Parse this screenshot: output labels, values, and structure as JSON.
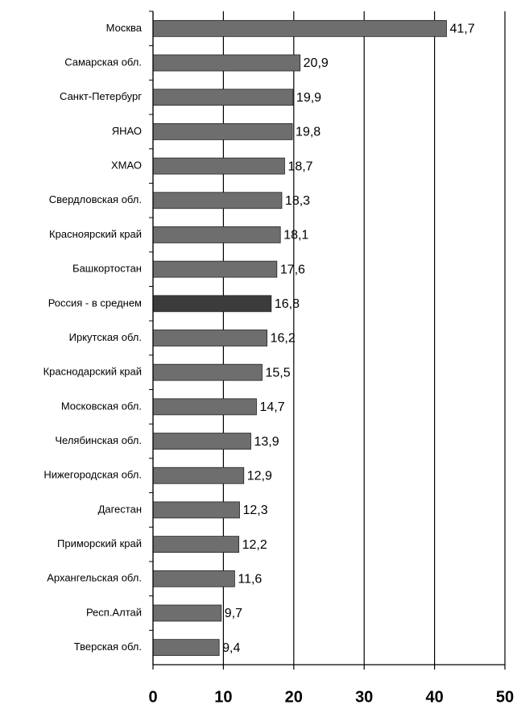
{
  "chart_data": {
    "type": "hbar",
    "categories": [
      "Москва",
      "Самарская обл.",
      "Санкт-Петербург",
      "ЯНАО",
      "ХМАО",
      "Свердловская обл.",
      "Красноярский край",
      "Башкортостан",
      "Россия - в среднем",
      "Иркутская обл.",
      "Краснодарский край",
      "Московская обл.",
      "Челябинская обл.",
      "Нижегородская обл.",
      "Дагестан",
      "Приморский край",
      "Архангельская обл.",
      "Респ.Алтай",
      "Тверская обл."
    ],
    "values": [
      41.7,
      20.9,
      19.9,
      19.8,
      18.7,
      18.3,
      18.1,
      17.6,
      16.8,
      16.2,
      15.5,
      14.7,
      13.9,
      12.9,
      12.3,
      12.2,
      11.6,
      9.7,
      9.4
    ],
    "value_labels": [
      "41,7",
      "20,9",
      "19,9",
      "19,8",
      "18,7",
      "18,3",
      "18,1",
      "17,6",
      "16,8",
      "16,2",
      "15,5",
      "14,7",
      "13,9",
      "12,9",
      "12,3",
      "12,2",
      "11,6",
      "9,7",
      "9,4"
    ],
    "colors": [
      "#6e6e6e",
      "#6e6e6e",
      "#6e6e6e",
      "#6e6e6e",
      "#6e6e6e",
      "#6e6e6e",
      "#6e6e6e",
      "#6e6e6e",
      "#3c3c3c",
      "#6e6e6e",
      "#6e6e6e",
      "#6e6e6e",
      "#6e6e6e",
      "#6e6e6e",
      "#6e6e6e",
      "#6e6e6e",
      "#6e6e6e",
      "#6e6e6e",
      "#6e6e6e"
    ],
    "xlim": [
      0,
      50
    ],
    "xticks": [
      0,
      10,
      20,
      30,
      40,
      50
    ],
    "grid": true
  }
}
